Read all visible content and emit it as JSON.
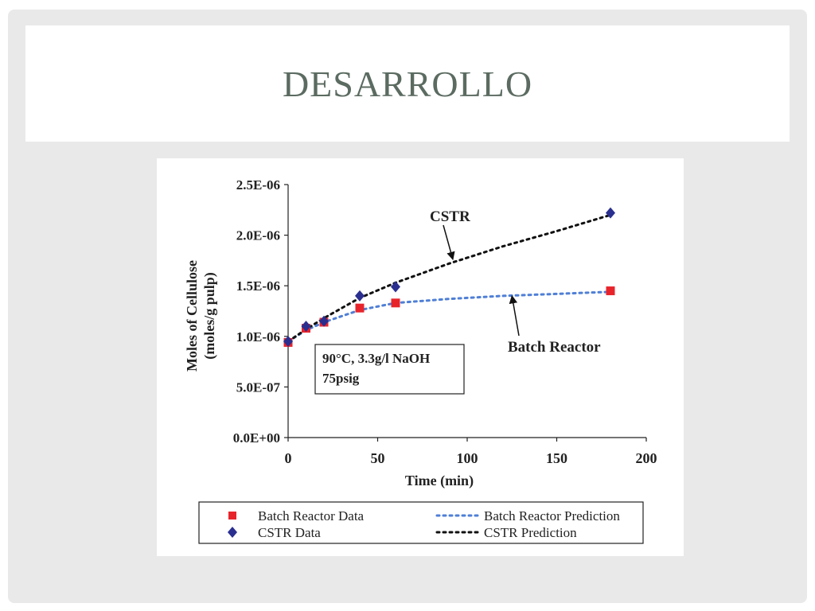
{
  "slide": {
    "title": "DESARROLLO"
  },
  "chart_data": {
    "type": "scatter",
    "title": "",
    "xlabel": "Time (min)",
    "ylabel": "Moles of Cellulose (moles/g pulp)",
    "ylabel_lines": [
      "Moles of Cellulose",
      "(moles/g pulp)"
    ],
    "xlim": [
      0,
      200
    ],
    "ylim": [
      0,
      2.5e-06
    ],
    "x_ticks": [
      0,
      50,
      100,
      150,
      200
    ],
    "x_tick_labels": [
      "0",
      "50",
      "100",
      "150",
      "200"
    ],
    "y_ticks": [
      0,
      5e-07,
      1e-06,
      1.5e-06,
      2e-06,
      2.5e-06
    ],
    "y_tick_labels": [
      "0.0E+00",
      "5.0E-07",
      "1.0E-06",
      "1.5E-06",
      "2.0E-06",
      "2.5E-06"
    ],
    "grid": false,
    "legend_position": "bottom",
    "conditions": [
      "90°C, 3.3g/l NaOH",
      "75psig"
    ],
    "annotations": [
      {
        "text": "CSTR",
        "target_series": "CSTR Prediction",
        "target_x": 92,
        "target_y": 1.76e-06
      },
      {
        "text": "Batch Reactor",
        "target_series": "Batch Reactor Prediction",
        "target_x": 125,
        "target_y": 1.4e-06
      }
    ],
    "series": [
      {
        "name": "Batch Reactor Data",
        "kind": "points",
        "marker": "square",
        "color": "#e8242b",
        "x": [
          0,
          10,
          20,
          40,
          60,
          180
        ],
        "y": [
          9.4e-07,
          1.08e-06,
          1.14e-06,
          1.28e-06,
          1.33e-06,
          1.45e-06
        ]
      },
      {
        "name": "CSTR Data",
        "kind": "points",
        "marker": "diamond",
        "color": "#2a2f8f",
        "x": [
          0,
          10,
          20,
          40,
          60,
          180
        ],
        "y": [
          9.5e-07,
          1.1e-06,
          1.15e-06,
          1.4e-06,
          1.49e-06,
          2.22e-06
        ]
      },
      {
        "name": "Batch Reactor Prediction",
        "kind": "line",
        "dash": "dotted",
        "color": "#4f7fd6",
        "x": [
          0,
          10,
          20,
          40,
          60,
          90,
          120,
          150,
          180
        ],
        "y": [
          9.5e-07,
          1.06e-06,
          1.14e-06,
          1.26e-06,
          1.33e-06,
          1.37e-06,
          1.4e-06,
          1.42e-06,
          1.44e-06
        ]
      },
      {
        "name": "CSTR Prediction",
        "kind": "line",
        "dash": "dotted",
        "color": "#111111",
        "x": [
          0,
          10,
          20,
          40,
          60,
          90,
          120,
          150,
          180
        ],
        "y": [
          9.5e-07,
          1.07e-06,
          1.18e-06,
          1.38e-06,
          1.53e-06,
          1.72e-06,
          1.89e-06,
          2.04e-06,
          2.2e-06
        ]
      }
    ]
  }
}
